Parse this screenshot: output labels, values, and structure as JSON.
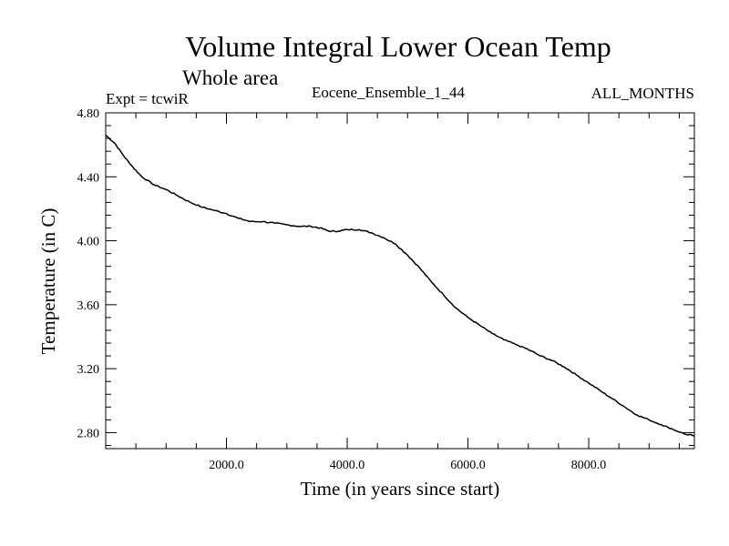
{
  "chart_data": {
    "type": "line",
    "title": "Volume Integral Lower Ocean Temp",
    "subtitle": "Whole area",
    "info_left": "Expt = tcwiR",
    "info_center": "Eocene_Ensemble_1_44",
    "info_right": "ALL_MONTHS",
    "xlabel": "Time (in years since start)",
    "ylabel": "Temperature (in C)",
    "xlim": [
      0,
      9750
    ],
    "ylim": [
      2.7,
      4.8
    ],
    "xticks": [
      2000,
      4000,
      6000,
      8000
    ],
    "xtick_labels": [
      "2000.0",
      "4000.0",
      "6000.0",
      "8000.0"
    ],
    "yticks": [
      2.8,
      3.2,
      3.6,
      4.0,
      4.4,
      4.8
    ],
    "ytick_labels": [
      "2.80",
      "3.20",
      "3.60",
      "4.00",
      "4.40",
      "4.80"
    ],
    "grid": false,
    "series": [
      {
        "color": "#000000",
        "x": [
          0,
          150,
          300,
          450,
          600,
          800,
          1000,
          1200,
          1400,
          1600,
          1800,
          2000,
          2200,
          2400,
          2600,
          2800,
          3000,
          3200,
          3400,
          3550,
          3700,
          3850,
          4000,
          4200,
          4400,
          4600,
          4800,
          5000,
          5200,
          5400,
          5600,
          5800,
          6000,
          6200,
          6400,
          6600,
          6800,
          7000,
          7200,
          7400,
          7600,
          7800,
          8000,
          8200,
          8400,
          8600,
          8800,
          9000,
          9200,
          9400,
          9600,
          9750
        ],
        "y": [
          4.66,
          4.61,
          4.53,
          4.46,
          4.4,
          4.35,
          4.32,
          4.28,
          4.24,
          4.21,
          4.19,
          4.17,
          4.14,
          4.12,
          4.12,
          4.11,
          4.1,
          4.09,
          4.09,
          4.08,
          4.06,
          4.06,
          4.07,
          4.07,
          4.05,
          4.02,
          3.98,
          3.91,
          3.83,
          3.74,
          3.66,
          3.58,
          3.52,
          3.47,
          3.42,
          3.38,
          3.35,
          3.32,
          3.28,
          3.25,
          3.21,
          3.16,
          3.11,
          3.06,
          3.01,
          2.96,
          2.91,
          2.88,
          2.85,
          2.82,
          2.79,
          2.78
        ]
      }
    ]
  }
}
